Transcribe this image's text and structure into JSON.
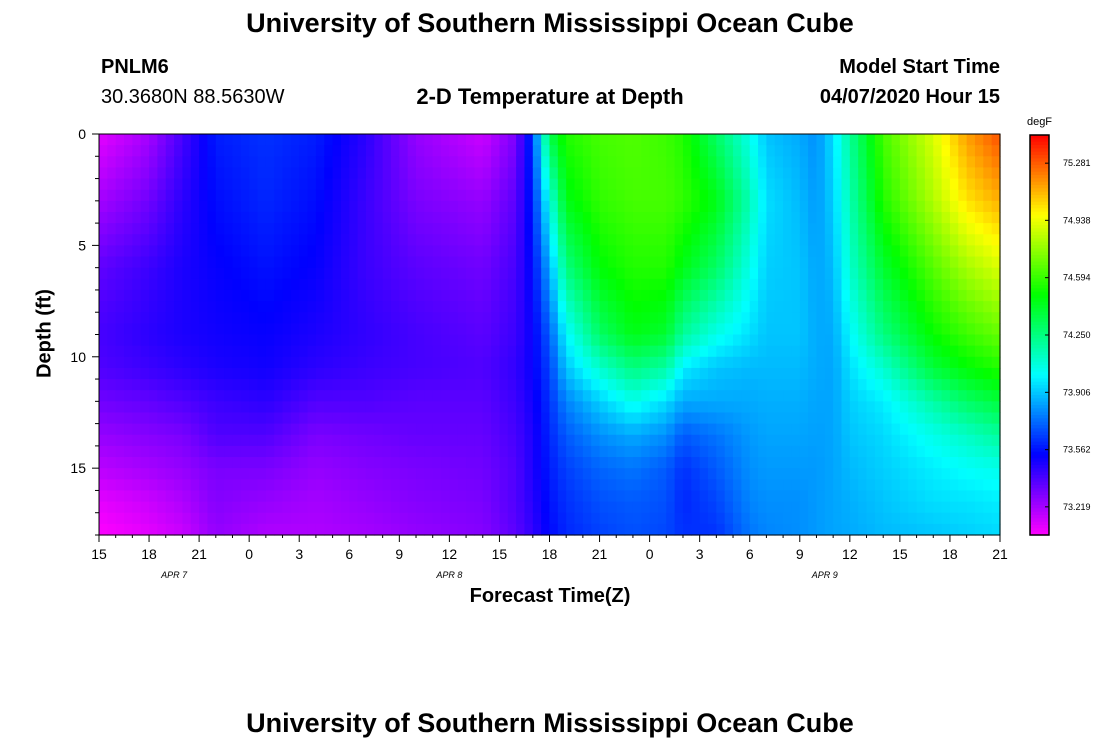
{
  "header": {
    "title_top": "University of Southern Mississippi Ocean Cube",
    "title_bottom": "University of Southern Mississippi Ocean Cube",
    "station": "PNLM6",
    "coords": "30.3680N 88.5630W",
    "subtitle": "2-D Temperature at Depth",
    "model_start_label": "Model Start Time",
    "model_start_value": "04/07/2020 Hour 15"
  },
  "chart_data": {
    "type": "heatmap",
    "title": "2-D Temperature at Depth",
    "xlabel": "Forecast Time(Z)",
    "ylabel": "Depth (ft)",
    "x_ticks": [
      "15",
      "18",
      "21",
      "0",
      "3",
      "6",
      "9",
      "12",
      "15",
      "18",
      "21",
      "0",
      "3",
      "6",
      "9",
      "12",
      "15",
      "18",
      "21"
    ],
    "x_range_hours": [
      0,
      54
    ],
    "date_labels": [
      {
        "text": "APR 7",
        "hour": 4.5
      },
      {
        "text": "APR 8",
        "hour": 21
      },
      {
        "text": "APR 9",
        "hour": 43.5
      }
    ],
    "y_ticks": [
      0,
      5,
      10,
      15
    ],
    "y_range_ft": [
      0,
      18
    ],
    "colorbar": {
      "unit": "degF",
      "ticks": [
        "75.281",
        "74.938",
        "74.594",
        "74.250",
        "73.906",
        "73.562",
        "73.219"
      ],
      "tick_values": [
        75.281,
        74.938,
        74.594,
        74.25,
        73.906,
        73.562,
        73.219
      ],
      "range": [
        73.05,
        75.45
      ]
    },
    "depth_levels_ft": [
      0,
      3,
      6,
      9,
      10.5,
      12,
      13.5,
      15,
      16.5,
      18
    ],
    "series": [
      {
        "hour": 0,
        "temps": [
          73.1,
          73.22,
          73.35,
          73.4,
          73.38,
          73.32,
          73.25,
          73.18,
          73.1,
          73.05
        ]
      },
      {
        "hour": 3,
        "temps": [
          73.22,
          73.32,
          73.42,
          73.45,
          73.42,
          73.35,
          73.28,
          73.22,
          73.15,
          73.1
        ]
      },
      {
        "hour": 5,
        "temps": [
          73.4,
          73.45,
          73.48,
          73.48,
          73.45,
          73.38,
          73.3,
          73.25,
          73.2,
          73.15
        ]
      },
      {
        "hour": 7,
        "temps": [
          73.58,
          73.55,
          73.52,
          73.5,
          73.48,
          73.42,
          73.38,
          73.3,
          73.28,
          73.25
        ]
      },
      {
        "hour": 10,
        "temps": [
          73.62,
          73.6,
          73.56,
          73.52,
          73.5,
          73.45,
          73.38,
          73.3,
          73.25,
          73.2
        ]
      },
      {
        "hour": 13,
        "temps": [
          73.58,
          73.55,
          73.52,
          73.48,
          73.45,
          73.38,
          73.3,
          73.25,
          73.22,
          73.2
        ]
      },
      {
        "hour": 16,
        "temps": [
          73.45,
          73.42,
          73.42,
          73.44,
          73.42,
          73.38,
          73.32,
          73.28,
          73.25,
          73.22
        ]
      },
      {
        "hour": 19,
        "temps": [
          73.25,
          73.3,
          73.36,
          73.4,
          73.4,
          73.36,
          73.34,
          73.3,
          73.28,
          73.25
        ]
      },
      {
        "hour": 23,
        "temps": [
          73.15,
          73.25,
          73.32,
          73.36,
          73.38,
          73.36,
          73.34,
          73.32,
          73.3,
          73.28
        ]
      },
      {
        "hour": 25,
        "temps": [
          73.3,
          73.36,
          73.4,
          73.42,
          73.44,
          73.42,
          73.4,
          73.38,
          73.38,
          73.36
        ]
      },
      {
        "hour": 26,
        "temps": [
          73.65,
          73.6,
          73.55,
          73.52,
          73.52,
          73.5,
          73.48,
          73.48,
          73.46,
          73.44
        ]
      },
      {
        "hour": 27,
        "temps": [
          74.35,
          74.05,
          73.85,
          73.7,
          73.65,
          73.62,
          73.6,
          73.58,
          73.56,
          73.54
        ]
      },
      {
        "hour": 28,
        "temps": [
          74.55,
          74.45,
          74.25,
          74.0,
          73.9,
          73.78,
          73.7,
          73.65,
          73.62,
          73.6
        ]
      },
      {
        "hour": 30,
        "temps": [
          74.62,
          74.58,
          74.48,
          74.3,
          74.1,
          73.92,
          73.8,
          73.72,
          73.68,
          73.65
        ]
      },
      {
        "hour": 32,
        "temps": [
          74.64,
          74.62,
          74.55,
          74.45,
          74.25,
          74.05,
          73.85,
          73.75,
          73.7,
          73.68
        ]
      },
      {
        "hour": 34,
        "temps": [
          74.6,
          74.62,
          74.55,
          74.4,
          74.18,
          73.95,
          73.8,
          73.7,
          73.68,
          73.66
        ]
      },
      {
        "hour": 35,
        "temps": [
          74.55,
          74.58,
          74.45,
          74.2,
          73.98,
          73.85,
          73.7,
          73.62,
          73.6,
          73.62
        ]
      },
      {
        "hour": 37,
        "temps": [
          74.3,
          74.45,
          74.3,
          74.05,
          73.9,
          73.85,
          73.75,
          73.7,
          73.66,
          73.62
        ]
      },
      {
        "hour": 39,
        "temps": [
          74.05,
          74.15,
          74.05,
          73.95,
          73.88,
          73.85,
          73.82,
          73.8,
          73.78,
          73.75
        ]
      },
      {
        "hour": 40,
        "temps": [
          73.9,
          73.95,
          73.92,
          73.9,
          73.88,
          73.86,
          73.84,
          73.82,
          73.8,
          73.78
        ]
      },
      {
        "hour": 42,
        "temps": [
          73.85,
          73.88,
          73.9,
          73.9,
          73.88,
          73.86,
          73.84,
          73.82,
          73.8,
          73.8
        ]
      },
      {
        "hour": 43,
        "temps": [
          73.8,
          73.82,
          73.84,
          73.85,
          73.85,
          73.84,
          73.83,
          73.82,
          73.82,
          73.82
        ]
      },
      {
        "hour": 44,
        "temps": [
          73.95,
          73.92,
          73.88,
          73.85,
          73.84,
          73.84,
          73.84,
          73.84,
          73.84,
          73.84
        ]
      },
      {
        "hour": 45,
        "temps": [
          74.2,
          74.15,
          74.1,
          74.0,
          73.95,
          73.92,
          73.9,
          73.88,
          73.86,
          73.85
        ]
      },
      {
        "hour": 47,
        "temps": [
          74.62,
          74.55,
          74.4,
          74.25,
          74.1,
          73.98,
          73.94,
          73.92,
          73.9,
          73.88
        ]
      },
      {
        "hour": 50,
        "temps": [
          74.9,
          74.82,
          74.65,
          74.5,
          74.38,
          74.18,
          74.05,
          73.98,
          73.95,
          73.9
        ]
      },
      {
        "hour": 52,
        "temps": [
          75.15,
          75.02,
          74.8,
          74.6,
          74.48,
          74.3,
          74.12,
          74.02,
          73.96,
          73.92
        ]
      },
      {
        "hour": 54,
        "temps": [
          75.3,
          75.12,
          74.9,
          74.68,
          74.55,
          74.38,
          74.2,
          74.05,
          73.98,
          73.94
        ]
      }
    ]
  }
}
